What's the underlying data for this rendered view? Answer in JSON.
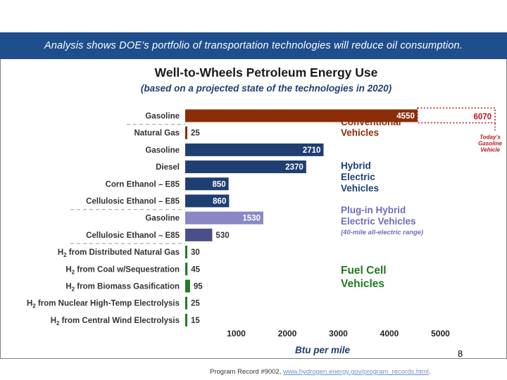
{
  "banner": {
    "text": "Analysis shows DOE’s portfolio of transportation technologies will reduce oil consumption."
  },
  "page_number": "8",
  "footer": {
    "prefix": "Program Record #9002, ",
    "link_text": "www.hydrogen.energy.gov/program_records.html",
    "suffix": "."
  },
  "chart_data": {
    "type": "bar",
    "orientation": "horizontal",
    "title": "Well-to-Wheels Petroleum Energy Use",
    "subtitle": "(based on a projected state of the technologies in 2020)",
    "xlabel": "Btu per mile",
    "xlim": [
      0,
      6400
    ],
    "x_ticks": [
      "1000",
      "2000",
      "3000",
      "4000",
      "5000"
    ],
    "x_tick_values": [
      1000,
      2000,
      3000,
      4000,
      5000
    ],
    "grid": false,
    "categories": [
      "Gasoline",
      "Natural Gas",
      "Gasoline",
      "Diesel",
      "Corn Ethanol – E85",
      "Cellulosic Ethanol – E85",
      "Gasoline",
      "Cellulosic Ethanol – E85",
      "H2 from Distributed Natural Gas",
      "H2 from Coal w/Sequestration",
      "H2 from Biomass Gasification",
      "H2 from Nuclear High-Temp Electrolysis",
      "H2 from Central Wind Electrolysis"
    ],
    "values": [
      4550,
      25,
      2710,
      2370,
      850,
      860,
      1530,
      530,
      30,
      45,
      95,
      25,
      15
    ],
    "value_labels": [
      "4550",
      "25",
      "2710",
      "2370",
      "850",
      "860",
      "1530",
      "530",
      "30",
      "45",
      "95",
      "25",
      "15"
    ],
    "bar_colors": [
      "#8b2e08",
      "#8b2e08",
      "#1f3f72",
      "#1f3f72",
      "#1f3f72",
      "#1f3f72",
      "#8a87c4",
      "#4a4f8a",
      "#237a23",
      "#237a23",
      "#237a23",
      "#237a23",
      "#237a23"
    ],
    "groups": [
      {
        "lines": [
          "Conventional",
          "Vehicles"
        ],
        "color": "#8b2e08"
      },
      {
        "lines": [
          "Hybrid",
          "Electric",
          "Vehicles"
        ],
        "color": "#1f3f72"
      },
      {
        "lines": [
          "Plug-in Hybrid",
          "Electric Vehicles"
        ],
        "note": "(40-mile all-electric range)",
        "color": "#6e6cc0"
      },
      {
        "lines": [
          "Fuel Cell",
          "Vehicles"
        ],
        "color": "#1e7a1e"
      }
    ],
    "reference": {
      "value": 6070,
      "label": "6070",
      "note": [
        "Today’s",
        "Gasoline",
        "Vehicle"
      ],
      "color": "#c0101a"
    }
  }
}
